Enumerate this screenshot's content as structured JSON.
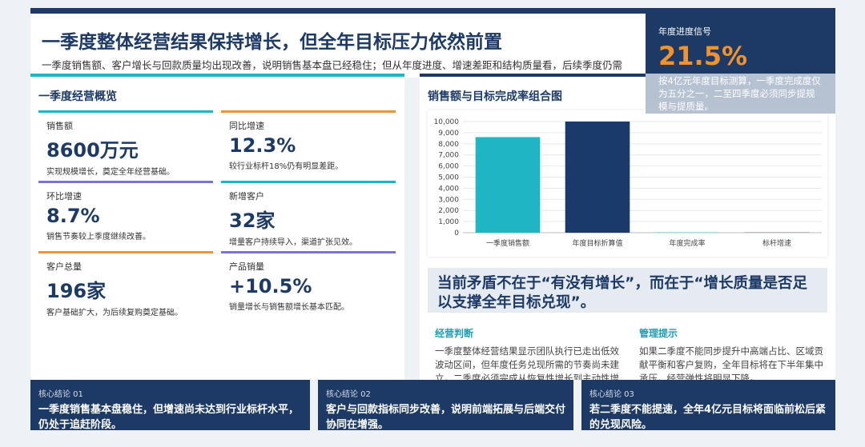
{
  "header": {
    "title": "一季度整体经营结果保持增长，但全年目标压力依然前置",
    "subtitle": "一季度销售额、客户增长与回款质量均出现改善，说明销售基本盘已经稳住；但从年度进度、增速差距和结构质量看，后续季度仍需明显提速。"
  },
  "signal": {
    "label": "年度进度信号",
    "value": "21.5%",
    "note": "按4亿元年度目标测算，一季度完成度仅为五分之一，二至四季度必须同步提规模与提质量。"
  },
  "overview": {
    "title": "一季度经营概览",
    "cards": [
      {
        "label": "销售额",
        "value": "8600万元",
        "note": "实现规模增长，奠定全年经营基础。",
        "color": "#1fb5c4"
      },
      {
        "label": "同比增速",
        "value": "12.3%",
        "note": "较行业标杆18%仍有明显差距。",
        "color": "#e8953a"
      },
      {
        "label": "环比增速",
        "value": "8.7%",
        "note": "销售节奏较上季度继续改善。",
        "color": "#7a73d6"
      },
      {
        "label": "新增客户",
        "value": "32家",
        "note": "增量客户持续导入，渠道扩张见效。",
        "color": "#1fb5c4"
      },
      {
        "label": "客户总量",
        "value": "196家",
        "note": "客户基础扩大，为后续复购奠定基础。",
        "color": "#e8953a"
      },
      {
        "label": "产品销量",
        "value": "+10.5%",
        "note": "销量增长与销售额增长基本匹配。",
        "color": "#7a73d6"
      }
    ]
  },
  "chart_data": {
    "type": "bar",
    "title": "销售额与目标完成率组合图",
    "categories": [
      "一季度销售额",
      "年度目标折算值",
      "年度完成率",
      "标杆增速"
    ],
    "values": [
      8600,
      10000,
      21.5,
      18
    ],
    "colors": [
      "#1fb5c4",
      "#1a3a6b",
      "#1fb5c4",
      "#1a3a6b"
    ],
    "ylim": [
      0,
      10000
    ],
    "yticks": [
      0,
      {
        "value": 1000,
        "label": "1,000"
      },
      {
        "value": 2000,
        "label": "2,000"
      },
      {
        "value": 3000,
        "label": "3,000"
      },
      {
        "value": 4000,
        "label": "4,000"
      },
      {
        "value": 5000,
        "label": "5,000"
      },
      {
        "value": 6000,
        "label": "6,000"
      },
      {
        "value": 7000,
        "label": "7,000"
      },
      {
        "value": 8000,
        "label": "8,000"
      },
      {
        "value": 9000,
        "label": "9,000"
      },
      {
        "value": 10000,
        "label": "10,000"
      }
    ],
    "grid": true
  },
  "quote": "当前矛盾不在于“有没有增长”，而在于“增长质量是否足以支撑全年目标兑现”。",
  "analysis": [
    {
      "title": "经营判断",
      "text": "一季度整体经营结果显示团队执行已走出低效波动区间，但年度任务兑现所需的节奏尚未建立，二季度必须完成从恢复性增长到主动性增长的切换。"
    },
    {
      "title": "管理提示",
      "text": "如果二季度不能同步提升中高端占比、区域贡献平衡和客户复购，全年目标将在下半年集中承压，经营弹性将明显下降。"
    }
  ],
  "conclusions": [
    {
      "label": "核心结论 01",
      "text": "一季度销售基本盘稳住，但增速尚未达到行业标杆水平，仍处于追赶阶段。"
    },
    {
      "label": "核心结论 02",
      "text": "客户与回款指标同步改善，说明前端拓展与后端交付协同在增强。"
    },
    {
      "label": "核心结论 03",
      "text": "若二季度不能提速，全年4亿元目标将面临前松后紧的兑现风险。"
    }
  ]
}
